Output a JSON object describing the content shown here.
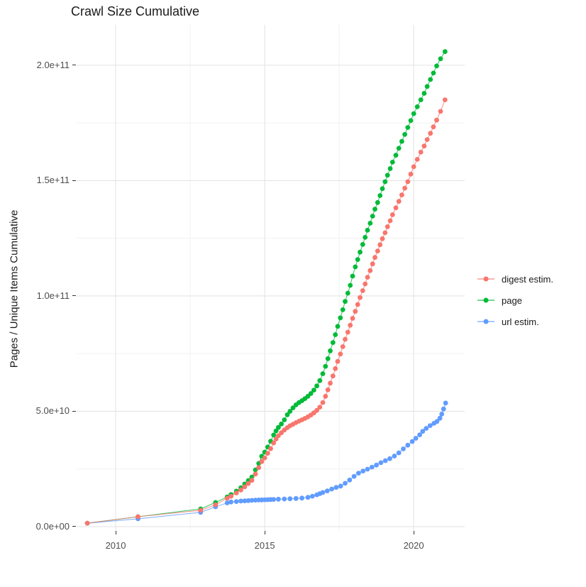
{
  "title": "Crawl Size Cumulative",
  "y_axis": {
    "label": "Pages / Unique Items Cumulative",
    "ticks": [
      {
        "label": "0.0e+00",
        "value_e9": 0
      },
      {
        "label": "5.0e+10",
        "value_e9": 50
      },
      {
        "label": "1.0e+11",
        "value_e9": 100
      },
      {
        "label": "1.5e+11",
        "value_e9": 150
      },
      {
        "label": "2.0e+11",
        "value_e9": 200
      }
    ],
    "minor_e9": [
      25,
      75,
      125,
      175
    ]
  },
  "x_axis": {
    "ticks": [
      {
        "label": "2010",
        "value": 2010
      },
      {
        "label": "2015",
        "value": 2015
      },
      {
        "label": "2020",
        "value": 2020
      }
    ],
    "minor": [
      2012.5,
      2017.5
    ]
  },
  "colors": {
    "grid_major": "#e4e4e4",
    "grid_minor": "#f0f0f0",
    "axis_text": "#4d4d4d",
    "tick_mark": "#333333"
  },
  "legend": {
    "position": "right"
  },
  "chart_data": {
    "type": "scatter",
    "title": "Crawl Size Cumulative",
    "xlabel": "",
    "ylabel": "Pages / Unique Items Cumulative",
    "x_unit": "year",
    "y_unit": "items, values in billions (1e9)",
    "xlim": [
      2008.69,
      2021.71
    ],
    "ylim_e9": [
      -1.85,
      217.5
    ],
    "grid": true,
    "legend_position": "right",
    "draw_order": [
      "page",
      "url estim.",
      "digest estim."
    ],
    "series": [
      {
        "name": "digest estim.",
        "color": "#F8766D",
        "points": [
          [
            2009.05,
            1.5
          ],
          [
            2010.75,
            4.3
          ],
          [
            2012.85,
            7.1
          ],
          [
            2013.35,
            9.5
          ],
          [
            2013.74,
            12.3
          ],
          [
            2013.87,
            13.2
          ],
          [
            2014.05,
            14.6
          ],
          [
            2014.2,
            15.9
          ],
          [
            2014.33,
            17.3
          ],
          [
            2014.45,
            18.7
          ],
          [
            2014.57,
            20.1
          ],
          [
            2014.69,
            22.8
          ],
          [
            2014.8,
            25.6
          ],
          [
            2014.9,
            28.2
          ],
          [
            2015.0,
            29.8
          ],
          [
            2015.1,
            31.8
          ],
          [
            2015.2,
            33.8
          ],
          [
            2015.3,
            36.3
          ],
          [
            2015.38,
            38.0
          ],
          [
            2015.46,
            39.4
          ],
          [
            2015.56,
            40.7
          ],
          [
            2015.66,
            41.9
          ],
          [
            2015.76,
            42.9
          ],
          [
            2015.85,
            43.7
          ],
          [
            2015.95,
            44.4
          ],
          [
            2016.05,
            45.1
          ],
          [
            2016.15,
            45.7
          ],
          [
            2016.25,
            46.3
          ],
          [
            2016.35,
            46.9
          ],
          [
            2016.45,
            47.6
          ],
          [
            2016.55,
            48.4
          ],
          [
            2016.65,
            49.3
          ],
          [
            2016.75,
            50.4
          ],
          [
            2016.85,
            51.8
          ],
          [
            2016.95,
            53.8
          ],
          [
            2017.04,
            56.5
          ],
          [
            2017.12,
            59.3
          ],
          [
            2017.2,
            62.2
          ],
          [
            2017.29,
            65.3
          ],
          [
            2017.37,
            68.5
          ],
          [
            2017.45,
            71.6
          ],
          [
            2017.54,
            74.8
          ],
          [
            2017.62,
            78.0
          ],
          [
            2017.7,
            81.2
          ],
          [
            2017.79,
            84.3
          ],
          [
            2017.87,
            87.3
          ],
          [
            2017.95,
            90.3
          ],
          [
            2018.04,
            93.3
          ],
          [
            2018.12,
            96.3
          ],
          [
            2018.2,
            99.3
          ],
          [
            2018.29,
            102.3
          ],
          [
            2018.37,
            105.2
          ],
          [
            2018.45,
            108.1
          ],
          [
            2018.54,
            111.0
          ],
          [
            2018.62,
            113.9
          ],
          [
            2018.7,
            116.7
          ],
          [
            2018.79,
            119.5
          ],
          [
            2018.87,
            122.2
          ],
          [
            2018.95,
            124.8
          ],
          [
            2019.04,
            127.4
          ],
          [
            2019.12,
            130.0
          ],
          [
            2019.21,
            132.6
          ],
          [
            2019.29,
            135.2
          ],
          [
            2019.4,
            138.2
          ],
          [
            2019.5,
            141.0
          ],
          [
            2019.6,
            143.8
          ],
          [
            2019.7,
            146.7
          ],
          [
            2019.8,
            149.5
          ],
          [
            2019.9,
            152.8
          ],
          [
            2020.0,
            156.0
          ],
          [
            2020.12,
            159.2
          ],
          [
            2020.24,
            162.3
          ],
          [
            2020.35,
            165.0
          ],
          [
            2020.45,
            167.8
          ],
          [
            2020.56,
            170.5
          ],
          [
            2020.66,
            173.3
          ],
          [
            2020.77,
            176.2
          ],
          [
            2020.9,
            180.0
          ],
          [
            2021.05,
            185.0
          ]
        ]
      },
      {
        "name": "page",
        "color": "#00BA38",
        "points": [
          [
            2009.05,
            1.5
          ],
          [
            2010.75,
            4.3
          ],
          [
            2012.85,
            7.7
          ],
          [
            2013.35,
            10.5
          ],
          [
            2013.74,
            12.9
          ],
          [
            2013.87,
            13.9
          ],
          [
            2014.05,
            15.4
          ],
          [
            2014.2,
            16.9
          ],
          [
            2014.33,
            18.5
          ],
          [
            2014.45,
            20.0
          ],
          [
            2014.57,
            21.5
          ],
          [
            2014.69,
            24.6
          ],
          [
            2014.8,
            27.4
          ],
          [
            2014.9,
            30.5
          ],
          [
            2015.0,
            32.3
          ],
          [
            2015.1,
            34.5
          ],
          [
            2015.2,
            37.0
          ],
          [
            2015.3,
            39.7
          ],
          [
            2015.38,
            41.5
          ],
          [
            2015.46,
            43.0
          ],
          [
            2015.56,
            44.5
          ],
          [
            2015.66,
            46.3
          ],
          [
            2015.76,
            48.5
          ],
          [
            2015.85,
            50.0
          ],
          [
            2015.95,
            51.5
          ],
          [
            2016.05,
            52.8
          ],
          [
            2016.15,
            53.8
          ],
          [
            2016.25,
            54.6
          ],
          [
            2016.35,
            55.5
          ],
          [
            2016.45,
            56.5
          ],
          [
            2016.55,
            57.7
          ],
          [
            2016.65,
            59.2
          ],
          [
            2016.75,
            61.0
          ],
          [
            2016.85,
            63.3
          ],
          [
            2016.95,
            66.3
          ],
          [
            2017.04,
            69.5
          ],
          [
            2017.12,
            72.8
          ],
          [
            2017.2,
            76.2
          ],
          [
            2017.29,
            79.8
          ],
          [
            2017.37,
            83.2
          ],
          [
            2017.45,
            86.8
          ],
          [
            2017.54,
            90.5
          ],
          [
            2017.62,
            94.0
          ],
          [
            2017.7,
            97.6
          ],
          [
            2017.79,
            101.2
          ],
          [
            2017.87,
            104.6
          ],
          [
            2017.95,
            108.6
          ],
          [
            2018.04,
            112.6
          ],
          [
            2018.12,
            115.8
          ],
          [
            2018.2,
            119.0
          ],
          [
            2018.29,
            122.3
          ],
          [
            2018.37,
            125.4
          ],
          [
            2018.45,
            128.5
          ],
          [
            2018.54,
            131.5
          ],
          [
            2018.62,
            134.6
          ],
          [
            2018.7,
            137.6
          ],
          [
            2018.79,
            140.5
          ],
          [
            2018.87,
            143.5
          ],
          [
            2018.95,
            146.5
          ],
          [
            2019.04,
            149.5
          ],
          [
            2019.12,
            152.3
          ],
          [
            2019.21,
            155.2
          ],
          [
            2019.29,
            158.0
          ],
          [
            2019.4,
            161.0
          ],
          [
            2019.5,
            164.0
          ],
          [
            2019.6,
            167.0
          ],
          [
            2019.7,
            170.0
          ],
          [
            2019.8,
            173.0
          ],
          [
            2019.9,
            176.0
          ],
          [
            2020.0,
            179.0
          ],
          [
            2020.12,
            182.0
          ],
          [
            2020.24,
            185.0
          ],
          [
            2020.35,
            187.8
          ],
          [
            2020.45,
            190.8
          ],
          [
            2020.56,
            193.8
          ],
          [
            2020.66,
            196.6
          ],
          [
            2020.77,
            199.7
          ],
          [
            2020.9,
            202.8
          ],
          [
            2021.05,
            205.9
          ]
        ]
      },
      {
        "name": "url estim.",
        "color": "#619CFF",
        "points": [
          [
            2009.05,
            1.5
          ],
          [
            2010.75,
            3.4
          ],
          [
            2012.85,
            6.2
          ],
          [
            2013.35,
            8.6
          ],
          [
            2013.74,
            10.3
          ],
          [
            2013.87,
            10.7
          ],
          [
            2014.05,
            10.9
          ],
          [
            2014.2,
            11.1
          ],
          [
            2014.33,
            11.2
          ],
          [
            2014.45,
            11.3
          ],
          [
            2014.57,
            11.4
          ],
          [
            2014.69,
            11.5
          ],
          [
            2014.8,
            11.55
          ],
          [
            2014.9,
            11.6
          ],
          [
            2015.0,
            11.65
          ],
          [
            2015.1,
            11.7
          ],
          [
            2015.2,
            11.75
          ],
          [
            2015.3,
            11.8
          ],
          [
            2015.46,
            11.9
          ],
          [
            2015.66,
            12.0
          ],
          [
            2015.85,
            12.1
          ],
          [
            2016.05,
            12.2
          ],
          [
            2016.25,
            12.4
          ],
          [
            2016.45,
            12.7
          ],
          [
            2016.6,
            13.2
          ],
          [
            2016.75,
            13.8
          ],
          [
            2016.85,
            14.3
          ],
          [
            2016.95,
            14.8
          ],
          [
            2017.1,
            15.5
          ],
          [
            2017.25,
            16.3
          ],
          [
            2017.4,
            17.0
          ],
          [
            2017.55,
            17.6
          ],
          [
            2017.7,
            18.8
          ],
          [
            2017.85,
            20.2
          ],
          [
            2018.0,
            21.8
          ],
          [
            2018.15,
            23.2
          ],
          [
            2018.3,
            24.1
          ],
          [
            2018.45,
            24.9
          ],
          [
            2018.6,
            25.8
          ],
          [
            2018.75,
            26.7
          ],
          [
            2018.9,
            27.7
          ],
          [
            2019.05,
            28.6
          ],
          [
            2019.2,
            29.5
          ],
          [
            2019.35,
            30.6
          ],
          [
            2019.5,
            32.0
          ],
          [
            2019.65,
            33.7
          ],
          [
            2019.8,
            35.3
          ],
          [
            2019.95,
            36.9
          ],
          [
            2020.07,
            38.3
          ],
          [
            2020.2,
            39.8
          ],
          [
            2020.3,
            41.3
          ],
          [
            2020.42,
            42.6
          ],
          [
            2020.55,
            43.8
          ],
          [
            2020.68,
            44.8
          ],
          [
            2020.78,
            45.6
          ],
          [
            2020.88,
            47.0
          ],
          [
            2020.94,
            48.8
          ],
          [
            2021.0,
            51.0
          ],
          [
            2021.07,
            53.6
          ]
        ]
      }
    ]
  }
}
